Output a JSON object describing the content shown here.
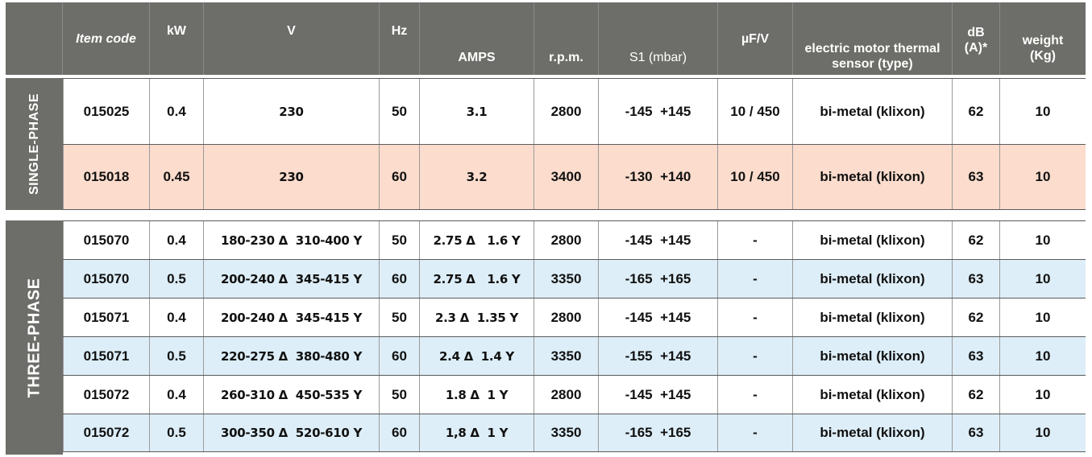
{
  "colors": {
    "header_bg": "#6d6d69",
    "row_white": "#ffffff",
    "row_pink": "#fcdccd",
    "row_blue": "#ddeef8"
  },
  "header": {
    "item_code": "Item code",
    "kw": "kW",
    "v": "V",
    "hz": "Hz",
    "amps": "AMPS",
    "rpm": "r.p.m.",
    "s1": "S1 (mbar)",
    "uf": "µF/V",
    "sensor_line1": "electric motor thermal",
    "sensor_line2": "sensor (type)",
    "db_line1": "dB",
    "db_line2": "(A)*",
    "weight_line1": "weight",
    "weight_line2": "(Kg)"
  },
  "groups": {
    "single": {
      "label": "SINGLE-PHASE",
      "rows": [
        {
          "bg": "#ffffff",
          "code": "015025",
          "kw": "0.4",
          "v": "230",
          "hz": "50",
          "amps": "3.1",
          "rpm": "2800",
          "s1": "-145  +145",
          "uf": "10 / 450",
          "sensor": "bi-metal (klixon)",
          "db": "62",
          "weight": "10"
        },
        {
          "bg": "#fcdccd",
          "code": "015018",
          "kw": "0.45",
          "v": "230",
          "hz": "60",
          "amps": "3.2",
          "rpm": "3400",
          "s1": "-130  +140",
          "uf": "10 / 450",
          "sensor": "bi-metal (klixon)",
          "db": "63",
          "weight": "10"
        }
      ]
    },
    "three": {
      "label": "THREE-PHASE",
      "rows": [
        {
          "bg": "#ffffff",
          "code": "015070",
          "kw": "0.4",
          "v": "180-230 Δ  310-400 Y",
          "hz": "50",
          "amps": "2.75 Δ   1.6 Y",
          "rpm": "2800",
          "s1": "-145  +145",
          "uf": "-",
          "sensor": "bi-metal (klixon)",
          "db": "62",
          "weight": "10"
        },
        {
          "bg": "#ddeef8",
          "code": "015070",
          "kw": "0.5",
          "v": "200-240 Δ  345-415 Y",
          "hz": "60",
          "amps": "2.75 Δ   1.6 Y",
          "rpm": "3350",
          "s1": "-165  +165",
          "uf": "-",
          "sensor": "bi-metal (klixon)",
          "db": "63",
          "weight": "10"
        },
        {
          "bg": "#ffffff",
          "code": "015071",
          "kw": "0.4",
          "v": "200-240 Δ  345-415 Y",
          "hz": "50",
          "amps": "2.3 Δ  1.35 Y",
          "rpm": "2800",
          "s1": "-145  +145",
          "uf": "-",
          "sensor": "bi-metal (klixon)",
          "db": "62",
          "weight": "10"
        },
        {
          "bg": "#ddeef8",
          "code": "015071",
          "kw": "0.5",
          "v": "220-275 Δ  380-480 Y",
          "hz": "60",
          "amps": "2.4 Δ  1.4 Y",
          "rpm": "3350",
          "s1": "-155  +145",
          "uf": "-",
          "sensor": "bi-metal (klixon)",
          "db": "63",
          "weight": "10"
        },
        {
          "bg": "#ffffff",
          "code": "015072",
          "kw": "0.4",
          "v": "260-310 Δ  450-535 Y",
          "hz": "50",
          "amps": "1.8 Δ  1 Y",
          "rpm": "2800",
          "s1": "-145  +145",
          "uf": "-",
          "sensor": "bi-metal (klixon)",
          "db": "62",
          "weight": "10"
        },
        {
          "bg": "#ddeef8",
          "code": "015072",
          "kw": "0.5",
          "v": "300-350 Δ  520-610 Y",
          "hz": "60",
          "amps": "1,8 Δ  1 Y",
          "rpm": "3350",
          "s1": "-165  +165",
          "uf": "-",
          "sensor": "bi-metal (klixon)",
          "db": "63",
          "weight": "10"
        }
      ]
    }
  }
}
